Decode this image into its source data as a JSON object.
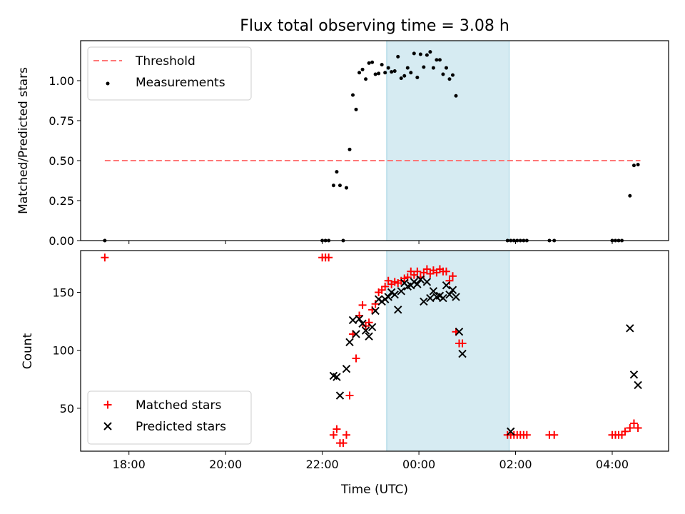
{
  "chart_data": [
    {
      "type": "scatter",
      "title": "Flux total observing time = 3.08 h",
      "xlabel": "",
      "ylabel": "Matched/Predicted stars",
      "xlim": [
        "17:00",
        "05:10"
      ],
      "ylim": [
        0,
        1.25
      ],
      "yticks": [
        "0.00",
        "0.25",
        "0.50",
        "0.75",
        "1.00"
      ],
      "shaded_interval": [
        "23:20",
        "01:52"
      ],
      "threshold": {
        "name": "Threshold",
        "value": 0.5,
        "x_start": "17:30",
        "x_end": "04:35",
        "color": "#ff7777"
      },
      "legend": {
        "placement": "top-left",
        "entries": [
          "Threshold",
          "Measurements"
        ]
      },
      "series": [
        {
          "name": "Measurements",
          "color": "#000000",
          "points": [
            [
              "17:30",
              0.0
            ],
            [
              "22:00",
              0.0
            ],
            [
              "22:04",
              0.0
            ],
            [
              "22:08",
              0.0
            ],
            [
              "22:14",
              0.345
            ],
            [
              "22:18",
              0.43
            ],
            [
              "22:22",
              0.345
            ],
            [
              "22:26",
              0.0
            ],
            [
              "22:30",
              0.33
            ],
            [
              "22:34",
              0.57
            ],
            [
              "22:38",
              0.91
            ],
            [
              "22:42",
              0.82
            ],
            [
              "22:46",
              1.05
            ],
            [
              "22:50",
              1.07
            ],
            [
              "22:54",
              1.01
            ],
            [
              "22:58",
              1.11
            ],
            [
              "23:02",
              1.115
            ],
            [
              "23:06",
              1.04
            ],
            [
              "23:10",
              1.045
            ],
            [
              "23:14",
              1.1
            ],
            [
              "23:18",
              1.05
            ],
            [
              "23:22",
              1.08
            ],
            [
              "23:26",
              1.055
            ],
            [
              "23:30",
              1.06
            ],
            [
              "23:34",
              1.15
            ],
            [
              "23:38",
              1.015
            ],
            [
              "23:42",
              1.03
            ],
            [
              "23:46",
              1.08
            ],
            [
              "23:50",
              1.05
            ],
            [
              "23:54",
              1.17
            ],
            [
              "23:58",
              1.02
            ],
            [
              "00:02",
              1.165
            ],
            [
              "00:06",
              1.085
            ],
            [
              "00:10",
              1.16
            ],
            [
              "00:14",
              1.18
            ],
            [
              "00:18",
              1.08
            ],
            [
              "00:22",
              1.13
            ],
            [
              "00:26",
              1.13
            ],
            [
              "00:30",
              1.04
            ],
            [
              "00:34",
              1.08
            ],
            [
              "00:38",
              1.01
            ],
            [
              "00:42",
              1.035
            ],
            [
              "00:46",
              0.905
            ],
            [
              "01:50",
              0.0
            ],
            [
              "01:54",
              0.0
            ],
            [
              "01:58",
              0.0
            ],
            [
              "02:02",
              0.0
            ],
            [
              "02:06",
              0.0
            ],
            [
              "02:10",
              0.0
            ],
            [
              "02:14",
              0.0
            ],
            [
              "02:42",
              0.0
            ],
            [
              "02:48",
              0.0
            ],
            [
              "04:00",
              0.0
            ],
            [
              "04:04",
              0.0
            ],
            [
              "04:08",
              0.0
            ],
            [
              "04:12",
              0.0
            ],
            [
              "04:22",
              0.28
            ],
            [
              "04:27",
              0.47
            ],
            [
              "04:32",
              0.475
            ]
          ]
        }
      ]
    },
    {
      "type": "scatter",
      "title": "",
      "xlabel": "Time (UTC)",
      "ylabel": "Count",
      "xlim": [
        "17:00",
        "05:10"
      ],
      "ylim": [
        13,
        186
      ],
      "yticks": [
        "50",
        "100",
        "150"
      ],
      "xticks": [
        "18:00",
        "20:00",
        "22:00",
        "00:00",
        "02:00",
        "04:00"
      ],
      "shaded_interval": [
        "23:20",
        "01:52"
      ],
      "legend": {
        "placement": "bottom-left",
        "entries": [
          "Matched stars",
          "Predicted stars"
        ]
      },
      "series": [
        {
          "name": "Matched stars",
          "color": "#ff0000",
          "marker": "plus",
          "points": [
            [
              "17:30",
              180
            ],
            [
              "22:00",
              180
            ],
            [
              "22:04",
              180
            ],
            [
              "22:08",
              180
            ],
            [
              "22:14",
              27
            ],
            [
              "22:18",
              32
            ],
            [
              "22:22",
              20
            ],
            [
              "22:26",
              20
            ],
            [
              "22:30",
              27
            ],
            [
              "22:34",
              61
            ],
            [
              "22:38",
              114
            ],
            [
              "22:42",
              93
            ],
            [
              "22:46",
              130
            ],
            [
              "22:50",
              139
            ],
            [
              "22:54",
              121
            ],
            [
              "22:58",
              124
            ],
            [
              "23:02",
              135
            ],
            [
              "23:06",
              140
            ],
            [
              "23:10",
              150
            ],
            [
              "23:14",
              152
            ],
            [
              "23:18",
              155
            ],
            [
              "23:22",
              160
            ],
            [
              "23:26",
              157
            ],
            [
              "23:30",
              159
            ],
            [
              "23:34",
              158
            ],
            [
              "23:38",
              160
            ],
            [
              "23:42",
              162
            ],
            [
              "23:46",
              163
            ],
            [
              "23:50",
              168
            ],
            [
              "23:54",
              165
            ],
            [
              "23:58",
              168
            ],
            [
              "00:02",
              163
            ],
            [
              "00:06",
              167
            ],
            [
              "00:10",
              170
            ],
            [
              "00:14",
              166
            ],
            [
              "00:18",
              169
            ],
            [
              "00:22",
              167
            ],
            [
              "00:26",
              170
            ],
            [
              "00:30",
              168
            ],
            [
              "00:34",
              168
            ],
            [
              "00:38",
              160
            ],
            [
              "00:42",
              164
            ],
            [
              "00:46",
              116
            ],
            [
              "00:50",
              106
            ],
            [
              "00:54",
              106
            ],
            [
              "01:50",
              27
            ],
            [
              "01:54",
              27
            ],
            [
              "01:58",
              27
            ],
            [
              "02:02",
              27
            ],
            [
              "02:06",
              27
            ],
            [
              "02:10",
              27
            ],
            [
              "02:14",
              27
            ],
            [
              "02:42",
              27
            ],
            [
              "02:48",
              27
            ],
            [
              "04:00",
              27
            ],
            [
              "04:04",
              27
            ],
            [
              "04:08",
              27
            ],
            [
              "04:12",
              27
            ],
            [
              "04:16",
              30
            ],
            [
              "04:22",
              33
            ],
            [
              "04:27",
              37
            ],
            [
              "04:32",
              33
            ]
          ]
        },
        {
          "name": "Predicted stars",
          "color": "#000000",
          "marker": "x",
          "points": [
            [
              "22:14",
              78
            ],
            [
              "22:18",
              77
            ],
            [
              "22:22",
              61
            ],
            [
              "22:30",
              84
            ],
            [
              "22:34",
              107
            ],
            [
              "22:38",
              126
            ],
            [
              "22:42",
              114
            ],
            [
              "22:46",
              127
            ],
            [
              "22:50",
              123
            ],
            [
              "22:54",
              117
            ],
            [
              "22:58",
              112
            ],
            [
              "23:02",
              120
            ],
            [
              "23:06",
              134
            ],
            [
              "23:10",
              144
            ],
            [
              "23:14",
              142
            ],
            [
              "23:18",
              144
            ],
            [
              "23:22",
              146
            ],
            [
              "23:26",
              150
            ],
            [
              "23:30",
              148
            ],
            [
              "23:34",
              135
            ],
            [
              "23:38",
              151
            ],
            [
              "23:42",
              158
            ],
            [
              "23:46",
              155
            ],
            [
              "23:50",
              156
            ],
            [
              "23:54",
              159
            ],
            [
              "23:58",
              157
            ],
            [
              "00:02",
              161
            ],
            [
              "00:06",
              142
            ],
            [
              "00:10",
              159
            ],
            [
              "00:14",
              145
            ],
            [
              "00:18",
              151
            ],
            [
              "00:22",
              146
            ],
            [
              "00:26",
              147
            ],
            [
              "00:30",
              145
            ],
            [
              "00:34",
              156
            ],
            [
              "00:38",
              148
            ],
            [
              "00:42",
              152
            ],
            [
              "00:46",
              146
            ],
            [
              "00:50",
              116
            ],
            [
              "00:54",
              97
            ],
            [
              "01:54",
              30
            ],
            [
              "04:22",
              119
            ],
            [
              "04:27",
              79
            ],
            [
              "04:32",
              70
            ]
          ]
        }
      ]
    }
  ]
}
